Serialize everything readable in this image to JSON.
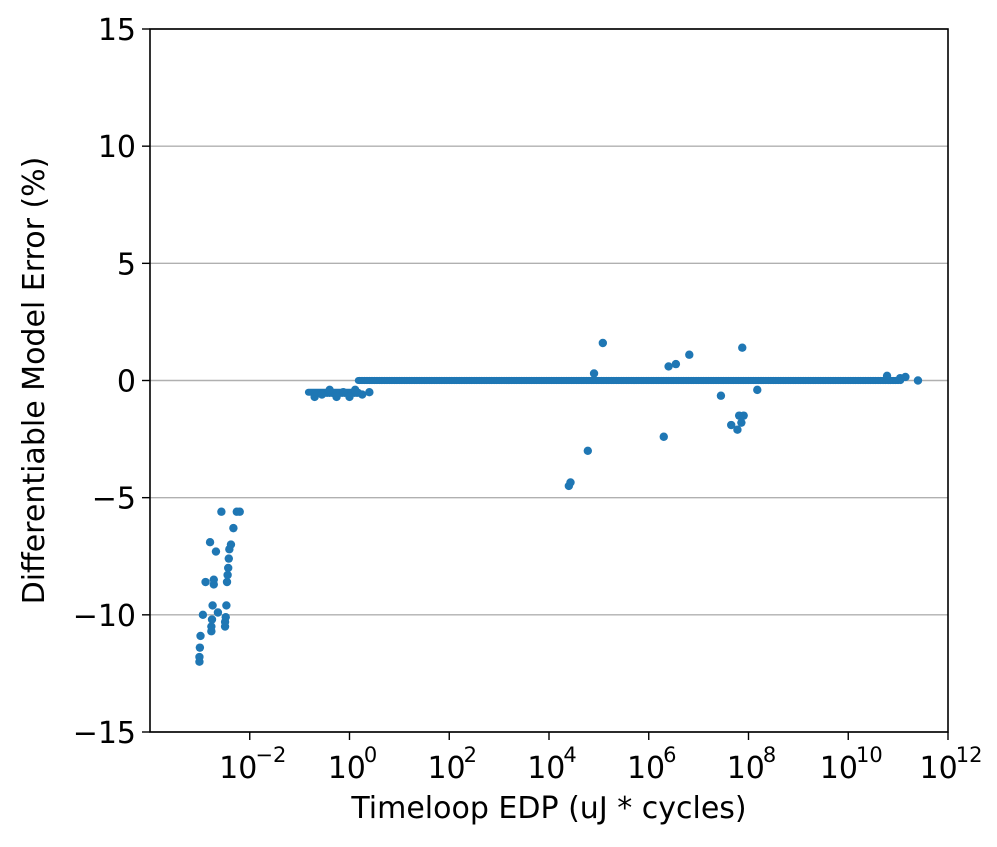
{
  "chart_data": {
    "type": "scatter",
    "title": "",
    "xlabel": "Timeloop EDP (uJ * cycles)",
    "ylabel": "Differentiable Model Error (%)",
    "xscale": "log",
    "xlim": [
      0.0001,
      1000000000000.0
    ],
    "ylim": [
      -15,
      15
    ],
    "grid": "y-axis horizontal lines",
    "legend": "none",
    "marker_color": "#1f77b4",
    "x_ticks": [
      {
        "base": "10",
        "exp": "−2",
        "value": 0.01
      },
      {
        "base": "10",
        "exp": "0",
        "value": 1
      },
      {
        "base": "10",
        "exp": "2",
        "value": 100
      },
      {
        "base": "10",
        "exp": "4",
        "value": 10000
      },
      {
        "base": "10",
        "exp": "6",
        "value": 1000000
      },
      {
        "base": "10",
        "exp": "8",
        "value": 100000000
      },
      {
        "base": "10",
        "exp": "10",
        "value": 10000000000
      },
      {
        "base": "10",
        "exp": "12",
        "value": 1000000000000
      }
    ],
    "y_ticks": [
      {
        "label": "15",
        "value": 15
      },
      {
        "label": "10",
        "value": 10
      },
      {
        "label": "5",
        "value": 5
      },
      {
        "label": "0",
        "value": 0
      },
      {
        "label": "−5",
        "value": -5
      },
      {
        "label": "−10",
        "value": -10
      },
      {
        "label": "−15",
        "value": -15
      }
    ],
    "dense_band": [
      {
        "x_from": 0.15,
        "x_to": 1.5,
        "y": -0.5
      },
      {
        "x_from": 1.5,
        "x_to": 100000000000,
        "y": 0
      }
    ],
    "points": [
      {
        "x": 0.00098,
        "y": -12.0
      },
      {
        "x": 0.00098,
        "y": -11.8
      },
      {
        "x": 0.001,
        "y": -11.4
      },
      {
        "x": 0.00103,
        "y": -10.9
      },
      {
        "x": 0.00115,
        "y": -10.0
      },
      {
        "x": 0.0013,
        "y": -8.6
      },
      {
        "x": 0.0016,
        "y": -6.9
      },
      {
        "x": 0.0017,
        "y": -10.7
      },
      {
        "x": 0.0017,
        "y": -10.5
      },
      {
        "x": 0.00175,
        "y": -10.2
      },
      {
        "x": 0.0018,
        "y": -9.6
      },
      {
        "x": 0.0019,
        "y": -8.7
      },
      {
        "x": 0.0019,
        "y": -8.5
      },
      {
        "x": 0.0021,
        "y": -7.3
      },
      {
        "x": 0.0023,
        "y": -9.9
      },
      {
        "x": 0.0027,
        "y": -5.6
      },
      {
        "x": 0.0032,
        "y": -10.5
      },
      {
        "x": 0.0032,
        "y": -10.3
      },
      {
        "x": 0.0033,
        "y": -10.1
      },
      {
        "x": 0.0034,
        "y": -9.6
      },
      {
        "x": 0.0035,
        "y": -8.6
      },
      {
        "x": 0.0036,
        "y": -8.3
      },
      {
        "x": 0.0037,
        "y": -8.0
      },
      {
        "x": 0.0038,
        "y": -7.6
      },
      {
        "x": 0.0039,
        "y": -7.2
      },
      {
        "x": 0.0042,
        "y": -7.0
      },
      {
        "x": 0.0047,
        "y": -6.3
      },
      {
        "x": 0.0055,
        "y": -5.6
      },
      {
        "x": 0.0063,
        "y": -5.6
      },
      {
        "x": 0.2,
        "y": -0.7
      },
      {
        "x": 0.28,
        "y": -0.6
      },
      {
        "x": 0.4,
        "y": -0.4
      },
      {
        "x": 0.55,
        "y": -0.7
      },
      {
        "x": 0.75,
        "y": -0.5
      },
      {
        "x": 1.0,
        "y": -0.7
      },
      {
        "x": 1.3,
        "y": -0.4
      },
      {
        "x": 1.8,
        "y": -0.6
      },
      {
        "x": 2.5,
        "y": -0.5
      },
      {
        "x": 25000,
        "y": -4.5
      },
      {
        "x": 27000,
        "y": -4.35
      },
      {
        "x": 60000,
        "y": -3.0
      },
      {
        "x": 80000,
        "y": 0.3
      },
      {
        "x": 120000,
        "y": 1.6
      },
      {
        "x": 2000000,
        "y": -2.4
      },
      {
        "x": 2500000,
        "y": 0.6
      },
      {
        "x": 3500000,
        "y": 0.7
      },
      {
        "x": 6500000,
        "y": 1.1
      },
      {
        "x": 28000000,
        "y": -0.65
      },
      {
        "x": 45000000,
        "y": -1.9
      },
      {
        "x": 60000000,
        "y": -2.1
      },
      {
        "x": 65000000,
        "y": -1.5
      },
      {
        "x": 72000000,
        "y": -1.8
      },
      {
        "x": 75000000,
        "y": 1.4
      },
      {
        "x": 80000000,
        "y": -1.5
      },
      {
        "x": 150000000,
        "y": -0.4
      },
      {
        "x": 60000000000,
        "y": 0.2
      },
      {
        "x": 110000000000,
        "y": 0.1
      },
      {
        "x": 140000000000,
        "y": 0.15
      },
      {
        "x": 250000000000,
        "y": 0.0
      }
    ]
  }
}
